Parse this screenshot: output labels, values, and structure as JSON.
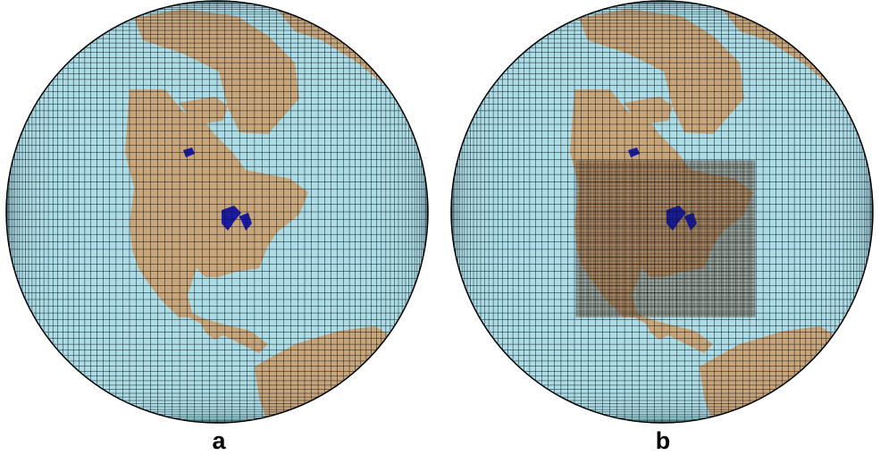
{
  "panels": [
    {
      "label": "a",
      "mesh": "uniform"
    },
    {
      "label": "b",
      "mesh": "regionally-refined",
      "refined_region": "North America"
    }
  ],
  "colors": {
    "ocean": "#acdde7",
    "land": "#c9a57a",
    "land_refined": "#8a6340",
    "ocean_refined": "#8fb7c6",
    "lakes": "#1a1aa6",
    "grid": "#101820"
  }
}
